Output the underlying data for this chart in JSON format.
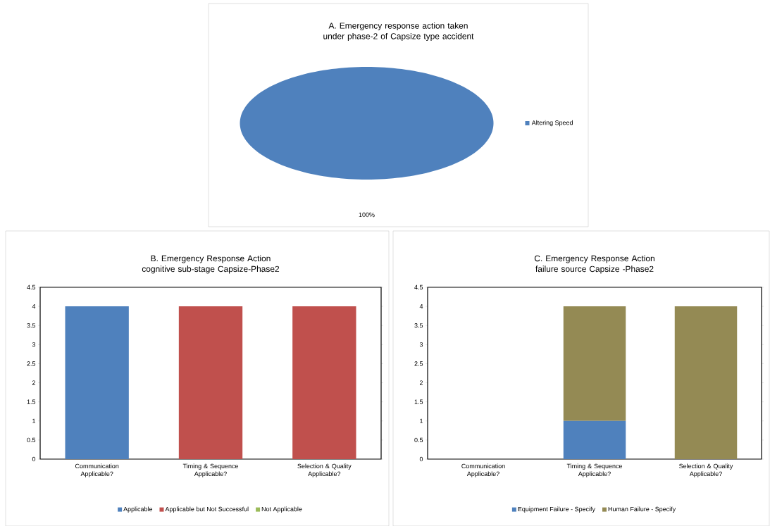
{
  "chart_data": [
    {
      "type": "pie",
      "title": "A. Emergency response action taken under phase-2 of Capsize type accident",
      "categories": [
        "Altering Speed"
      ],
      "values": [
        100
      ],
      "colors": [
        "#4f81bd"
      ],
      "value_labels": [
        "100%"
      ],
      "legend": "right"
    },
    {
      "type": "bar",
      "stacked": true,
      "title": "B. Emergency Response Action cognitive sub-stage Capsize-Phase2",
      "categories": [
        "Communication Applicable?",
        "Timing & Sequence Applicable?",
        "Selection & Quality Applicable?"
      ],
      "series": [
        {
          "name": "Applicable",
          "color": "#4f81bd",
          "values": [
            4,
            0,
            0
          ]
        },
        {
          "name": "Applicable but Not Successful",
          "color": "#c0504d",
          "values": [
            0,
            4,
            4
          ]
        },
        {
          "name": "Not Applicable",
          "color": "#9bbb59",
          "values": [
            0,
            0,
            0
          ]
        }
      ],
      "ylim": [
        0,
        4.5
      ],
      "yticks": [
        0,
        0.5,
        1,
        1.5,
        2,
        2.5,
        3,
        3.5,
        4,
        4.5
      ],
      "legend": "bottom"
    },
    {
      "type": "bar",
      "stacked": true,
      "title": "C. Emergency Response Action failure source Capsize -Phase2",
      "categories": [
        "Communication Applicable?",
        "Timing & Sequence Applicable?",
        "Selection & Quality Applicable?"
      ],
      "series": [
        {
          "name": "Equipment Failure - Specify",
          "color": "#4f81bd",
          "values": [
            0,
            1,
            0
          ]
        },
        {
          "name": "Human Failure - Specify",
          "color": "#948a54",
          "values": [
            0,
            3,
            4
          ]
        }
      ],
      "ylim": [
        0,
        4.5
      ],
      "yticks": [
        0,
        0.5,
        1,
        1.5,
        2,
        2.5,
        3,
        3.5,
        4,
        4.5
      ],
      "legend": "bottom"
    }
  ]
}
